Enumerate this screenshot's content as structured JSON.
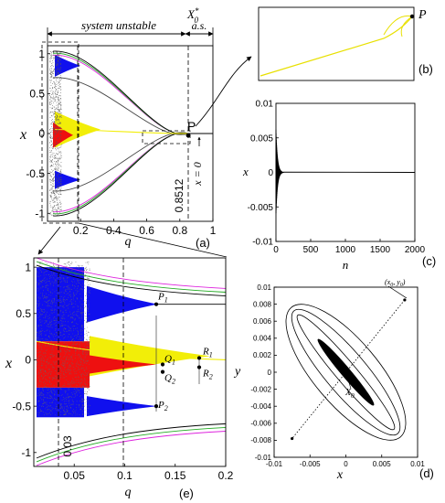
{
  "figure": {
    "panel_letters": [
      "(a)",
      "(b)",
      "(c)",
      "(d)",
      "(e)"
    ],
    "header_unstable": "system unstable",
    "header_x0": "X",
    "header_x0_sup": "*",
    "header_x0_sub": "0",
    "header_as": "a.s.",
    "colors": {
      "blue": "#1010ee",
      "yellow": "#f2ee08",
      "red": "#ee1010",
      "green": "#22aa22",
      "magenta": "#dd22dd",
      "black": "#000000",
      "gray": "#444444"
    }
  },
  "chart_data": [
    {
      "panel": "(a)",
      "type": "scatter",
      "xlabel": "q",
      "ylabel": "x",
      "xlim": [
        0,
        1
      ],
      "ylim": [
        -1.1,
        1.1
      ],
      "xticks": [
        "0.2",
        "0.4",
        "0.6",
        "0.8",
        "1"
      ],
      "yticks": [
        "1",
        "0.5",
        "0",
        "-0.5",
        "-1"
      ],
      "annotations": {
        "point": "P",
        "threshold": "0.8512",
        "fixed_point": "x = 0"
      },
      "dashed_lines_x": [
        0.18,
        0.8512
      ],
      "point_P": [
        0.8512,
        0
      ]
    },
    {
      "panel": "(b)",
      "type": "line",
      "annotations": {
        "point": "P"
      }
    },
    {
      "panel": "(c)",
      "type": "line",
      "xlabel": "n",
      "ylabel": "x",
      "xlim": [
        0,
        2000
      ],
      "ylim": [
        -0.01,
        0.01
      ],
      "xticks": [
        "0",
        "500",
        "1000",
        "1500",
        "2000"
      ],
      "yticks": [
        "0.01",
        "0.005",
        "0",
        "-0.005",
        "-0.01"
      ]
    },
    {
      "panel": "(d)",
      "type": "line",
      "xlabel": "x",
      "ylabel": "y",
      "xlim": [
        -0.01,
        0.01
      ],
      "ylim": [
        -0.01,
        0.01
      ],
      "xticks": [
        "-0.01",
        "-0.005",
        "0",
        "0.005",
        "0.01"
      ],
      "yticks": [
        "0.01",
        "0.008",
        "0.006",
        "0.004",
        "0.002",
        "0",
        "-0.002",
        "-0.004",
        "-0.006",
        "-0.008",
        "-0.01"
      ],
      "annotations": {
        "start": "(x",
        "start_sub0": "0",
        "start_mid": ", y",
        "start_sub1": "0",
        "start_end": ")",
        "end": "X",
        "end_sub": "0"
      },
      "start_point": [
        0.0082,
        0.0085
      ]
    },
    {
      "panel": "(e)",
      "type": "scatter",
      "xlabel": "q",
      "ylabel": "x",
      "xlim": [
        0.01,
        0.2
      ],
      "ylim": [
        -1.15,
        1.1
      ],
      "xticks": [
        "0.05",
        "0.1",
        "0.15",
        "0.2"
      ],
      "yticks": [
        "1",
        "0.5",
        "0",
        "-0.5",
        "-1"
      ],
      "annotations": {
        "threshold": "0.03",
        "P1": "P",
        "P1_sub": "1",
        "P2": "P",
        "P2_sub": "2",
        "Q1": "Q",
        "Q1_sub": "1",
        "Q2": "Q",
        "Q2_sub": "2",
        "R1": "R",
        "R1_sub": "1",
        "R2": "R",
        "R2_sub": "2"
      },
      "dashed_lines_x": [
        0.035,
        0.1
      ]
    }
  ]
}
